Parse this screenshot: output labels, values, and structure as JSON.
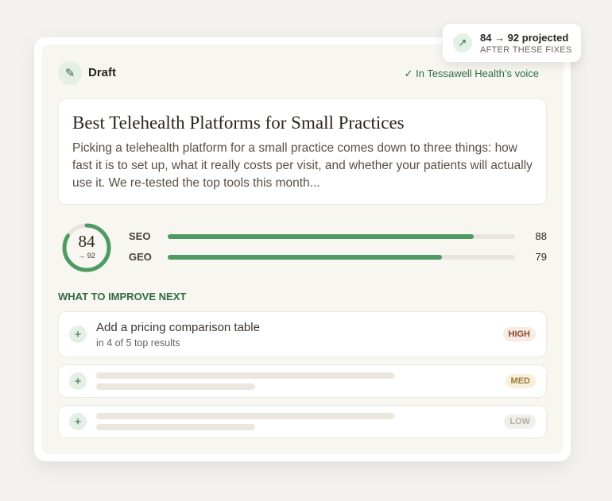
{
  "badge": {
    "title": "84 → 92 projected",
    "subtitle": "AFTER THESE FIXES"
  },
  "header": {
    "label": "Draft",
    "voice": "In Tessawell Health’s voice"
  },
  "article": {
    "title": "Best Telehealth Platforms for Small Practices",
    "body": "Picking a telehealth platform for a small practice comes down to three things: how fast it is to set up, what it really costs per visit, and whether your patients will actually use it. We re-tested the top tools this month..."
  },
  "scores": {
    "overall": 84,
    "projected_label": "→ 92",
    "metrics": [
      {
        "name": "SEO",
        "value": 88
      },
      {
        "name": "GEO",
        "value": 79
      }
    ]
  },
  "improvements": {
    "heading": "WHAT TO IMPROVE NEXT",
    "items": [
      {
        "title": "Add a pricing comparison table",
        "detail": "in 4 of 5 top results",
        "priority": "HIGH"
      },
      {
        "priority": "MED"
      },
      {
        "priority": "LOW"
      }
    ]
  }
}
